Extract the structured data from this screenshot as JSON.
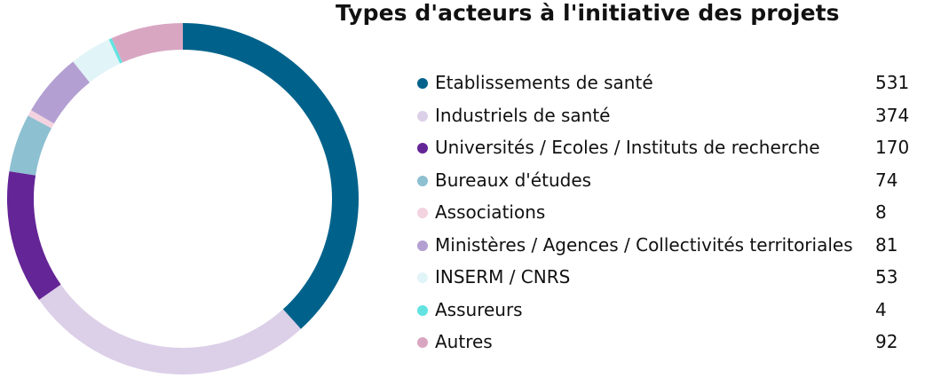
{
  "chart_data": {
    "type": "pie",
    "title": "Types d'acteurs à l'initiative des projets",
    "categories": [
      "Etablissements de santé",
      "Industriels de santé",
      "Universités / Ecoles / Instituts de recherche",
      "Bureaux d'études",
      "Associations",
      "Ministères / Agences / Collectivités territoriales",
      "INSERM / CNRS",
      "Assureurs",
      "Autres"
    ],
    "values": [
      531,
      374,
      170,
      74,
      8,
      81,
      53,
      4,
      92
    ],
    "value_labels": [
      "531",
      "374",
      "170",
      "74",
      "8",
      "81",
      "53",
      "4",
      "92"
    ],
    "colors": [
      "#00628b",
      "#dccfe8",
      "#642596",
      "#8dc0d1",
      "#f2d3df",
      "#b39fd1",
      "#e1f4f8",
      "#62e3e0",
      "#d9a6c2"
    ],
    "legend": "right",
    "style": "donut"
  }
}
